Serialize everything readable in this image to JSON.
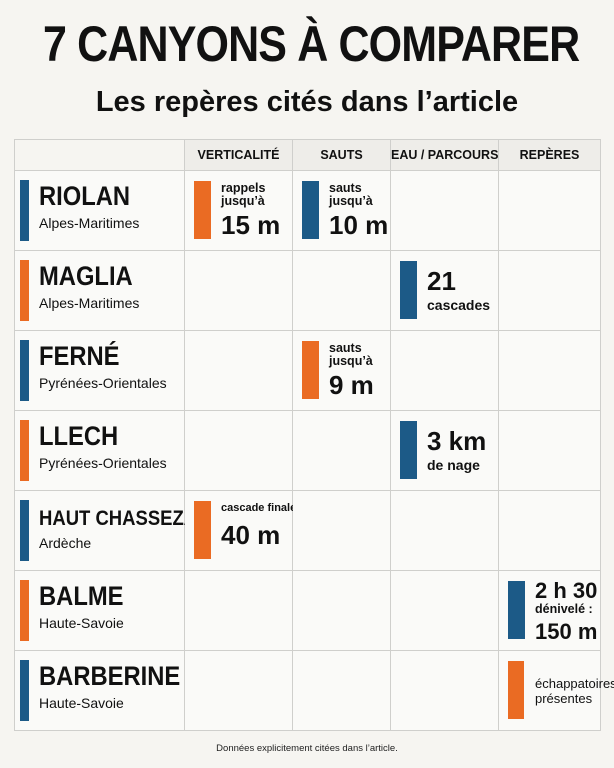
{
  "title": "7 CANYONS À COMPARER",
  "subtitle": "Les repères cités dans l’article",
  "columns": [
    "VERTICALITÉ",
    "SAUTS",
    "EAU / PARCOURS",
    "REPÈRES"
  ],
  "colors": {
    "blue": "#1c5a87",
    "orange": "#ea6b23",
    "grid": "#cfcfcc",
    "background": "#f6f5f1"
  },
  "rows": [
    {
      "name": "RIOLAN",
      "region": "Alpes-Maritimes",
      "bar_color": "#1c5a87",
      "cells": {
        "verticalite": {
          "label": "rappels\njusqu’à",
          "value": "15 m",
          "color": "#ea6b23"
        },
        "sauts": {
          "label": "sauts\njusqu’à",
          "value": "10 m",
          "color": "#1c5a87"
        }
      }
    },
    {
      "name": "MAGLIA",
      "region": "Alpes-Maritimes",
      "bar_color": "#ea6b23",
      "cells": {
        "eau": {
          "value": "21",
          "label": "cascades",
          "color": "#1c5a87"
        }
      }
    },
    {
      "name": "FERNÉ",
      "region": "Pyrénées-Orientales",
      "bar_color": "#1c5a87",
      "cells": {
        "sauts": {
          "label": "sauts\njusqu’à",
          "value": "9 m",
          "color": "#ea6b23"
        }
      }
    },
    {
      "name": "LLECH",
      "region": "Pyrénées-Orientales",
      "bar_color": "#ea6b23",
      "cells": {
        "eau": {
          "value": "3 km",
          "label": "de nage",
          "color": "#1c5a87"
        }
      }
    },
    {
      "name": "HAUT CHASSEZAC",
      "region": "Ardèche",
      "bar_color": "#1c5a87",
      "cells": {
        "verticalite": {
          "label": "cascade finale :",
          "value": "40 m",
          "color": "#ea6b23"
        }
      }
    },
    {
      "name": "BALME",
      "region": "Haute-Savoie",
      "bar_color": "#ea6b23",
      "cells": {
        "reperes": {
          "value": "2 h 30",
          "label": "dénivelé :",
          "value2": "150 m",
          "color": "#1c5a87"
        }
      }
    },
    {
      "name": "BARBERINE",
      "region": "Haute-Savoie",
      "bar_color": "#1c5a87",
      "cells": {
        "reperes": {
          "label": "échappatoires\nprésentes",
          "color": "#ea6b23"
        }
      }
    }
  ],
  "footer": "Données explicitement citées dans l’article."
}
